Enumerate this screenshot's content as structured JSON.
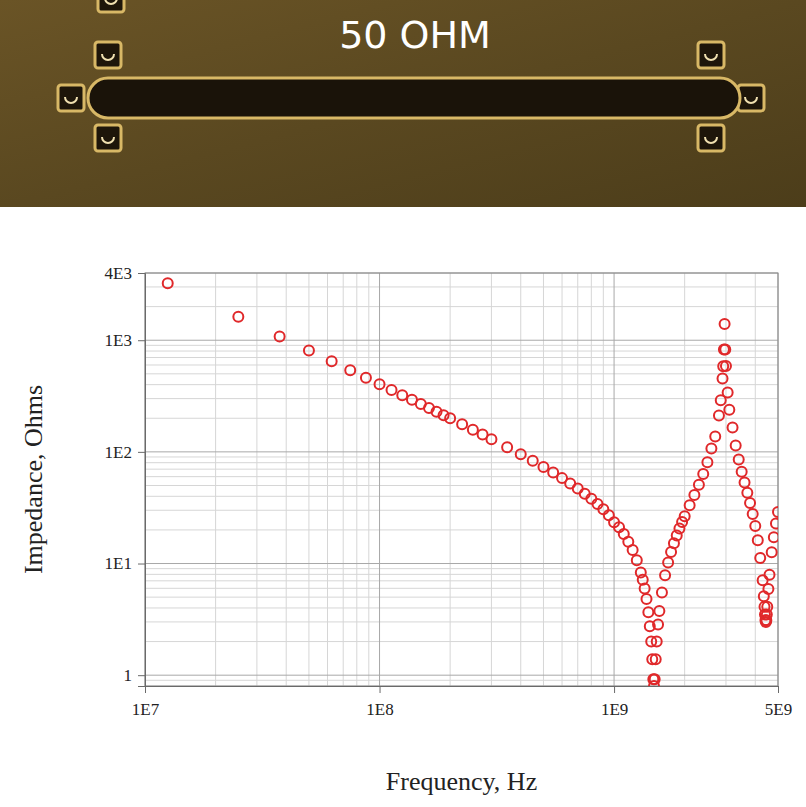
{
  "photo": {
    "label": "50 OHM"
  },
  "chart_data": {
    "type": "scatter",
    "x_label": "Frequency, Hz",
    "y_label": "Impedance, Ohms",
    "log": true,
    "grid": true,
    "marker": "circle",
    "color": "#e0282a",
    "xlim": [
      10000000.0,
      5000000000.0
    ],
    "ylim": [
      0.8,
      4000
    ],
    "xticks": [
      {
        "value": 10000000.0,
        "label": "1E7"
      },
      {
        "value": 100000000.0,
        "label": "1E8"
      },
      {
        "value": 1000000000.0,
        "label": "1E9"
      },
      {
        "value": 5000000000.0,
        "label": "5E9"
      }
    ],
    "yticks": [
      {
        "value": 4000,
        "label": "4E3"
      },
      {
        "value": 1000,
        "label": "1E3"
      },
      {
        "value": 100,
        "label": "1E2"
      },
      {
        "value": 10,
        "label": "1E1"
      },
      1
    ],
    "x": [
      12500000.0,
      25000000.0,
      37500000.0,
      50000000.0,
      62500000.0,
      75000000.0,
      87500000.0,
      100000000.0,
      112500000.0,
      125000000.0,
      137500000.0,
      150000000.0,
      162500000.0,
      175000000.0,
      187500000.0,
      200000000.0,
      225000000.0,
      250000000.0,
      275000000.0,
      300000000.0,
      350000000.0,
      400000000.0,
      450000000.0,
      500000000.0,
      550000000.0,
      600000000.0,
      650000000.0,
      700000000.0,
      750000000.0,
      800000000.0,
      850000000.0,
      900000000.0,
      950000000.0,
      1000000000.0,
      1050000000.0,
      1100000000.0,
      1150000000.0,
      1200000000.0,
      1250000000.0,
      1300000000.0,
      1325000000.0,
      1350000000.0,
      1375000000.0,
      1400000000.0,
      1420000000.0,
      1440000000.0,
      1455000000.0,
      1470000000.0,
      1480000000.0,
      1490000000.0,
      1505000000.0,
      1520000000.0,
      1540000000.0,
      1560000000.0,
      1600000000.0,
      1650000000.0,
      1700000000.0,
      1750000000.0,
      1800000000.0,
      1850000000.0,
      1900000000.0,
      1950000000.0,
      2000000000.0,
      2100000000.0,
      2200000000.0,
      2300000000.0,
      2400000000.0,
      2500000000.0,
      2600000000.0,
      2700000000.0,
      2800000000.0,
      2850000000.0,
      2900000000.0,
      2920000000.0,
      2940000000.0,
      2960000000.0,
      2980000000.0,
      3000000000.0,
      3050000000.0,
      3100000000.0,
      3200000000.0,
      3300000000.0,
      3400000000.0,
      3500000000.0,
      3600000000.0,
      3700000000.0,
      3800000000.0,
      3900000000.0,
      4000000000.0,
      4100000000.0,
      4200000000.0,
      4300000000.0,
      4350000000.0,
      4380000000.0,
      4400000000.0,
      4420000000.0,
      4440000000.0,
      4460000000.0,
      4480000000.0,
      4500000000.0,
      4550000000.0,
      4600000000.0,
      4700000000.0,
      4800000000.0,
      4900000000.0,
      5000000000.0
    ],
    "values": [
      3241,
      1620,
      1080,
      810,
      647,
      539,
      462,
      404,
      358,
      322,
      293,
      268,
      247,
      229,
      213,
      200,
      177,
      158,
      143,
      130,
      110,
      95.2,
      83.2,
      73.3,
      65.2,
      58.2,
      52.2,
      46.9,
      42.2,
      38.1,
      34.2,
      30.7,
      27.1,
      23.4,
      21.1,
      18.4,
      15.7,
      13.2,
      10.7,
      8.32,
      7.14,
      5.97,
      4.82,
      3.66,
      2.74,
      2.0,
      1.39,
      0.92,
      0.8,
      0.92,
      1.39,
      2.0,
      2.85,
      3.75,
      5.51,
      7.84,
      10.2,
      12.7,
      15.2,
      17.8,
      20.6,
      23.5,
      26.5,
      33.3,
      41.1,
      50.8,
      63.5,
      80.8,
      107,
      137,
      212,
      290,
      454,
      585,
      824,
      1400,
      824,
      587,
      340,
      238,
      165,
      114,
      85.4,
      66.5,
      53.2,
      43.0,
      34.9,
      27.8,
      21.7,
      16.2,
      11.2,
      7.1,
      5.1,
      4.1,
      3.5,
      3.1,
      3.0,
      3.1,
      3.5,
      4.1,
      5.9,
      7.95,
      12.6,
      17.2,
      22.8,
      29.0
    ]
  }
}
